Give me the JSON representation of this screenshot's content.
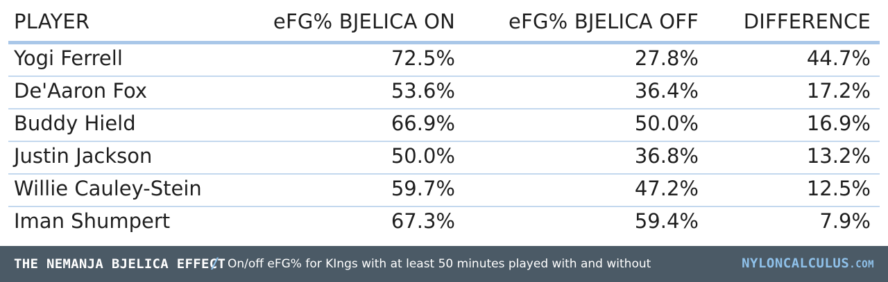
{
  "chart_data": {
    "type": "table",
    "columns": [
      "PLAYER",
      "eFG% BJELICA ON",
      "eFG% BJELICA OFF",
      "DIFFERENCE"
    ],
    "rows": [
      {
        "player": "Yogi Ferrell",
        "on": "72.5%",
        "off": "27.8%",
        "diff": "44.7%"
      },
      {
        "player": "De'Aaron Fox",
        "on": "53.6%",
        "off": "36.4%",
        "diff": "17.2%"
      },
      {
        "player": "Buddy Hield",
        "on": "66.9%",
        "off": "50.0%",
        "diff": "16.9%"
      },
      {
        "player": "Justin Jackson",
        "on": "50.0%",
        "off": "36.8%",
        "diff": "13.2%"
      },
      {
        "player": "Willie Cauley-Stein",
        "on": "59.7%",
        "off": "47.2%",
        "diff": "12.5%"
      },
      {
        "player": "Iman Shumpert",
        "on": "67.3%",
        "off": "59.4%",
        "diff": "7.9%"
      }
    ]
  },
  "footer": {
    "title": "THE NEMANJA BJELICA EFFECT",
    "separator": "/",
    "subtitle": "On/off eFG% for KIngs with at least 50 minutes played with and without",
    "brand": "NYLONCALCULUS",
    "brand_domain": ".COM"
  },
  "colors": {
    "header_rule": "#a9c7e8",
    "row_rule": "#c3d8ee",
    "footer_bg": "#4b5a66",
    "footer_accent": "#8fc1ea"
  }
}
